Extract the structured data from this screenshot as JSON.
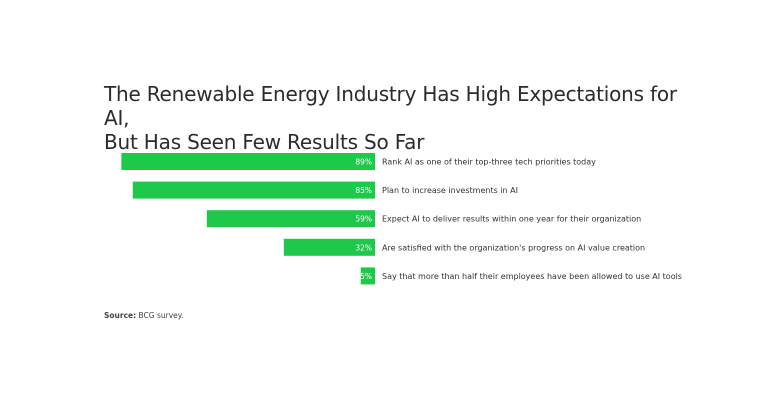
{
  "title_line1": "The Renewable Energy Industry Has High Expectations for AI,",
  "title_line2": "But Has Seen Few Results So Far",
  "source_label": "Source:",
  "source_text": "BCG survey.",
  "colors": {
    "bar": "#1ec84a",
    "text": "#333333",
    "background": "#ffffff"
  },
  "chart_data": {
    "type": "bar",
    "orientation": "horizontal",
    "title": "The Renewable Energy Industry Has High Expectations for AI, But Has Seen Few Results So Far",
    "categories": [
      "Rank AI as one of their top-three tech priorities today",
      "Plan to increase investments in AI",
      "Expect AI to deliver results within one year for their organization",
      "Are satisfied with the organization's progress on AI value creation",
      "Say that more than half their employees have been allowed to use AI tools"
    ],
    "values": [
      89,
      85,
      59,
      32,
      5
    ],
    "value_labels": [
      "89%",
      "85%",
      "59%",
      "32%",
      "5%"
    ],
    "xlim": [
      0,
      100
    ],
    "unit": "%",
    "grid": false,
    "legend": "none"
  }
}
